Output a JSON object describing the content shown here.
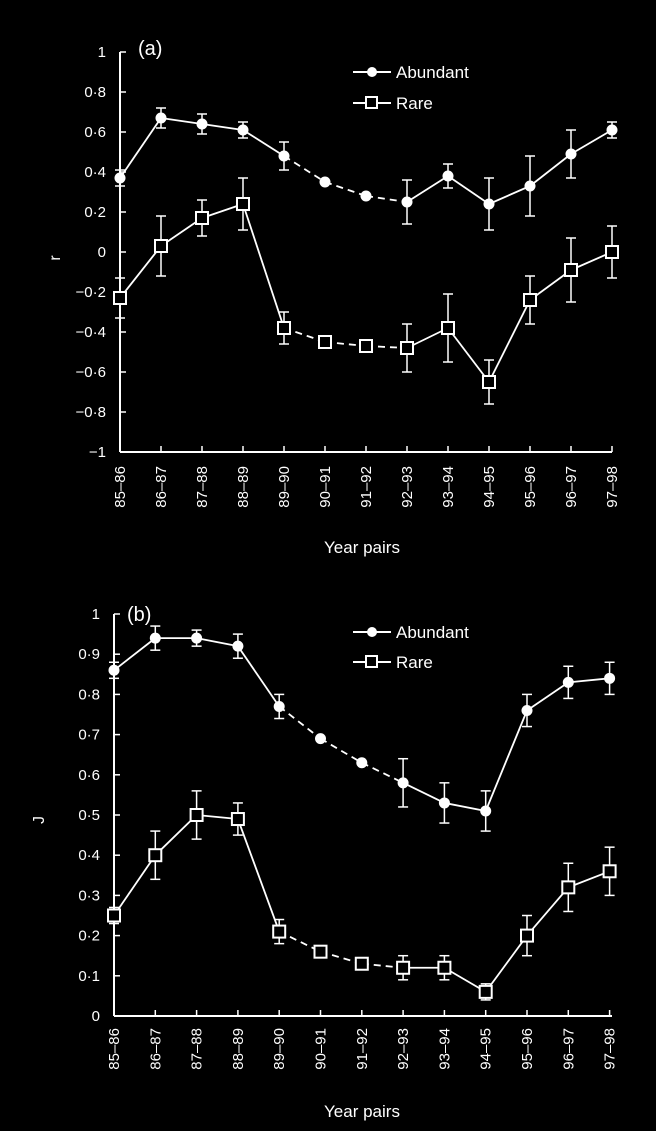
{
  "chart_data": [
    {
      "type": "line",
      "panel_label": "(a)",
      "ylabel": "r",
      "xlabel": "Year pairs",
      "categories": [
        "85–86",
        "86–87",
        "87–88",
        "88–89",
        "89–90",
        "90–91",
        "91–92",
        "92–93",
        "93–94",
        "94–95",
        "95–96",
        "96–97",
        "97–98"
      ],
      "ylim": [
        -1,
        1
      ],
      "yticks": [
        -1,
        -0.8,
        -0.6,
        -0.4,
        -0.2,
        0,
        0.2,
        0.4,
        0.6,
        0.8,
        1
      ],
      "ytick_labels": [
        "−1",
        "−0·8",
        "−0·6",
        "−0·4",
        "−0·2",
        "0",
        "0·2",
        "0·4",
        "0·6",
        "0·8",
        "1"
      ],
      "legend": "top-right",
      "series": [
        {
          "name": "Abundant",
          "marker": "filled-circle",
          "values": [
            0.37,
            0.67,
            0.64,
            0.61,
            0.48,
            0.35,
            0.28,
            0.25,
            0.38,
            0.24,
            0.33,
            0.49,
            0.61
          ],
          "errors": [
            0.04,
            0.05,
            0.05,
            0.04,
            0.07,
            null,
            null,
            0.11,
            0.06,
            0.13,
            0.15,
            0.12,
            0.04
          ],
          "dashed_segments": [
            [
              4,
              7
            ]
          ]
        },
        {
          "name": "Rare",
          "marker": "open-square",
          "values": [
            -0.23,
            0.03,
            0.17,
            0.24,
            -0.38,
            -0.45,
            -0.47,
            -0.48,
            -0.38,
            -0.65,
            -0.24,
            -0.09,
            0.0
          ],
          "errors": [
            0.1,
            0.15,
            0.09,
            0.13,
            0.08,
            null,
            null,
            0.12,
            0.17,
            0.11,
            0.12,
            0.16,
            0.13
          ],
          "dashed_segments": [
            [
              4,
              7
            ]
          ]
        }
      ]
    },
    {
      "type": "line",
      "panel_label": "(b)",
      "ylabel": "J",
      "xlabel": "Year pairs",
      "categories": [
        "85–86",
        "86–87",
        "87–88",
        "88–89",
        "89–90",
        "90–91",
        "91–92",
        "92–93",
        "93–94",
        "94–95",
        "95–96",
        "96–97",
        "97–98"
      ],
      "ylim": [
        0,
        1
      ],
      "yticks": [
        0,
        0.1,
        0.2,
        0.3,
        0.4,
        0.5,
        0.6,
        0.7,
        0.8,
        0.9,
        1
      ],
      "ytick_labels": [
        "0",
        "0·1",
        "0·2",
        "0·3",
        "0·4",
        "0·5",
        "0·6",
        "0·7",
        "0·8",
        "0·9",
        "1"
      ],
      "legend": "top-right",
      "series": [
        {
          "name": "Abundant",
          "marker": "filled-circle",
          "values": [
            0.86,
            0.94,
            0.94,
            0.92,
            0.77,
            0.69,
            0.63,
            0.58,
            0.53,
            0.51,
            0.76,
            0.83,
            0.84
          ],
          "errors": [
            0.02,
            0.03,
            0.02,
            0.03,
            0.03,
            null,
            null,
            0.06,
            0.05,
            0.05,
            0.04,
            0.04,
            0.04
          ],
          "dashed_segments": [
            [
              4,
              7
            ]
          ]
        },
        {
          "name": "Rare",
          "marker": "open-square",
          "values": [
            0.25,
            0.4,
            0.5,
            0.49,
            0.21,
            0.16,
            0.13,
            0.12,
            0.12,
            0.06,
            0.2,
            0.32,
            0.36
          ],
          "errors": [
            0.02,
            0.06,
            0.06,
            0.04,
            0.03,
            null,
            null,
            0.03,
            0.03,
            0.02,
            0.05,
            0.06,
            0.06
          ],
          "dashed_segments": [
            [
              4,
              7
            ]
          ]
        }
      ]
    }
  ]
}
